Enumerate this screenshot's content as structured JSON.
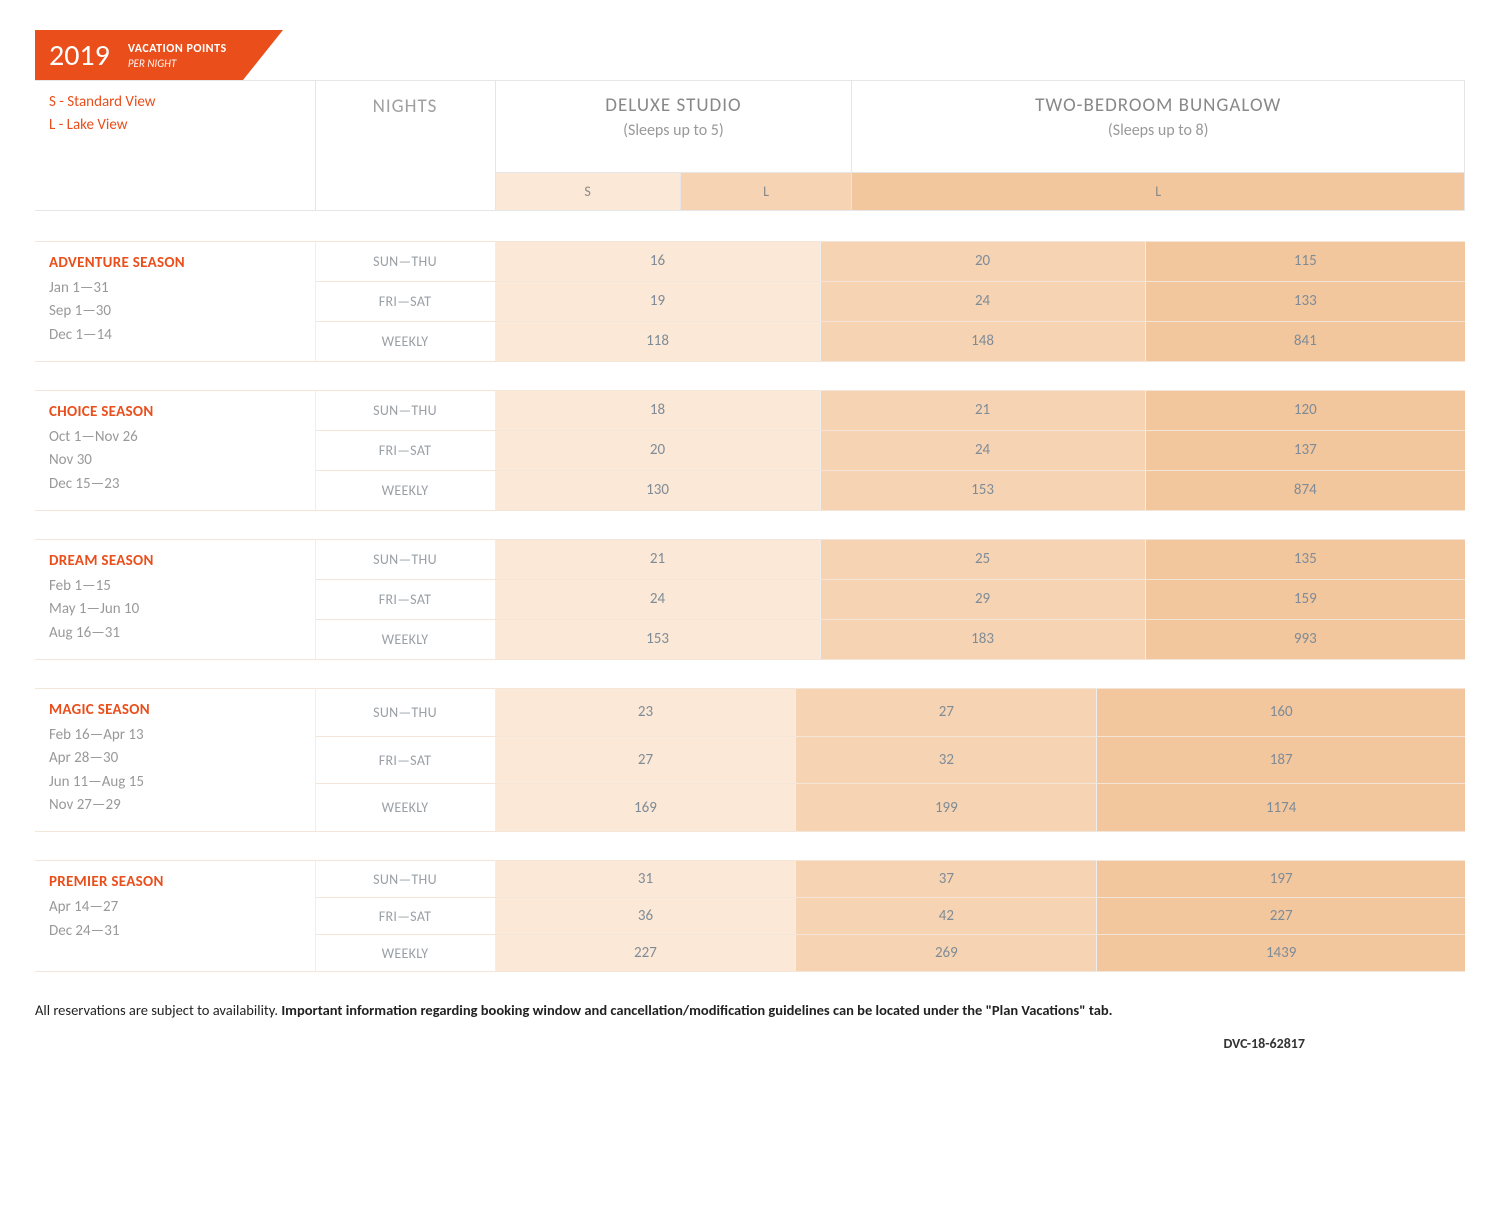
{
  "header": {
    "year": "2019",
    "line1": "VACATION POINTS",
    "line2": "PER NIGHT"
  },
  "legend": {
    "s": "S - Standard View",
    "l": "L - Lake View"
  },
  "columns": {
    "nights_header": "NIGHTS",
    "room_types": [
      {
        "title": "DELUXE STUDIO",
        "sleeps": "(Sleeps up to 5)",
        "sub_cols": [
          "S",
          "L"
        ]
      },
      {
        "title": "TWO-BEDROOM BUNGALOW",
        "sleeps": "(Sleeps up to 8)",
        "sub_cols": [
          "L"
        ]
      }
    ],
    "sublabels": {
      "s": "S",
      "l": "L"
    }
  },
  "row_labels": {
    "sun_thu": "SUN—THU",
    "fri_sat": "FRI—SAT",
    "weekly": "WEEKLY"
  },
  "seasons": [
    {
      "name": "ADVENTURE SEASON",
      "dates": [
        "Jan 1—31",
        "Sep 1—30",
        "Dec 1—14"
      ],
      "rows": [
        {
          "label_key": "sun_thu",
          "values": [
            "16",
            "20",
            "115"
          ]
        },
        {
          "label_key": "fri_sat",
          "values": [
            "19",
            "24",
            "133"
          ]
        },
        {
          "label_key": "weekly",
          "values": [
            "118",
            "148",
            "841"
          ]
        }
      ]
    },
    {
      "name": "CHOICE SEASON",
      "dates": [
        "Oct 1—Nov 26",
        "Nov 30",
        "Dec 15—23"
      ],
      "rows": [
        {
          "label_key": "sun_thu",
          "values": [
            "18",
            "21",
            "120"
          ]
        },
        {
          "label_key": "fri_sat",
          "values": [
            "20",
            "24",
            "137"
          ]
        },
        {
          "label_key": "weekly",
          "values": [
            "130",
            "153",
            "874"
          ]
        }
      ]
    },
    {
      "name": "DREAM SEASON",
      "dates": [
        "Feb 1—15",
        "May 1—Jun 10",
        "Aug 16—31"
      ],
      "rows": [
        {
          "label_key": "sun_thu",
          "values": [
            "21",
            "25",
            "135"
          ]
        },
        {
          "label_key": "fri_sat",
          "values": [
            "24",
            "29",
            "159"
          ]
        },
        {
          "label_key": "weekly",
          "values": [
            "153",
            "183",
            "993"
          ]
        }
      ]
    },
    {
      "name": "MAGIC SEASON",
      "dates": [
        "Feb 16—Apr 13",
        "Apr 28—30",
        "Jun 11—Aug 15",
        "Nov 27—29"
      ],
      "rows": [
        {
          "label_key": "sun_thu",
          "values": [
            "23",
            "27",
            "160"
          ]
        },
        {
          "label_key": "fri_sat",
          "values": [
            "27",
            "32",
            "187"
          ]
        },
        {
          "label_key": "weekly",
          "values": [
            "169",
            "199",
            "1174"
          ]
        }
      ]
    },
    {
      "name": "PREMIER SEASON",
      "dates": [
        "Apr 14—27",
        "Dec 24—31"
      ],
      "rows": [
        {
          "label_key": "sun_thu",
          "values": [
            "31",
            "37",
            "197"
          ]
        },
        {
          "label_key": "fri_sat",
          "values": [
            "36",
            "42",
            "227"
          ]
        },
        {
          "label_key": "weekly",
          "values": [
            "227",
            "269",
            "1439"
          ]
        }
      ]
    }
  ],
  "footnote": {
    "lead": "All reservations are subject to availability. ",
    "bold": "Important information regarding booking window and cancellation/modification guidelines can be located under the \"Plan Vacations\" tab."
  },
  "doc_id": "DVC-18-62817",
  "colors": {
    "brand": "#e94e1b",
    "col_s": "#fbe8d6",
    "col_l1": "#f6d4b3",
    "col_l2": "#f2c79e"
  }
}
